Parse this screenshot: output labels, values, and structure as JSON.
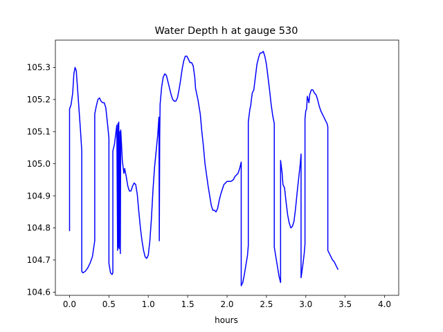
{
  "chart_data": {
    "type": "line",
    "title": "Water Depth h at gauge 530",
    "xlabel": "hours",
    "ylabel": "",
    "xlim": [
      -0.18,
      4.18
    ],
    "ylim": [
      104.59,
      105.385
    ],
    "x_ticks": [
      0.0,
      0.5,
      1.0,
      1.5,
      2.0,
      2.5,
      3.0,
      3.5,
      4.0
    ],
    "x_tick_labels": [
      "0.0",
      "0.5",
      "1.0",
      "1.5",
      "2.0",
      "2.5",
      "3.0",
      "3.5",
      "4.0"
    ],
    "y_ticks": [
      104.6,
      104.7,
      104.8,
      104.9,
      105.0,
      105.1,
      105.2,
      105.3
    ],
    "y_tick_labels": [
      "104.6",
      "104.7",
      "104.8",
      "104.9",
      "105.0",
      "105.1",
      "105.2",
      "105.3"
    ],
    "grid": false,
    "series": [
      {
        "color": "#0000ff",
        "points": [
          [
            0.0,
            104.79
          ],
          [
            0.0,
            105.17
          ],
          [
            0.02,
            105.185
          ],
          [
            0.04,
            105.22
          ],
          [
            0.055,
            105.28
          ],
          [
            0.07,
            105.3
          ],
          [
            0.085,
            105.29
          ],
          [
            0.1,
            105.24
          ],
          [
            0.12,
            105.17
          ],
          [
            0.14,
            105.1
          ],
          [
            0.155,
            105.04
          ],
          [
            0.155,
            104.665
          ],
          [
            0.17,
            104.66
          ],
          [
            0.2,
            104.665
          ],
          [
            0.23,
            104.675
          ],
          [
            0.26,
            104.69
          ],
          [
            0.29,
            104.71
          ],
          [
            0.32,
            104.76
          ],
          [
            0.32,
            105.155
          ],
          [
            0.34,
            105.18
          ],
          [
            0.36,
            105.2
          ],
          [
            0.38,
            105.205
          ],
          [
            0.4,
            105.195
          ],
          [
            0.42,
            105.19
          ],
          [
            0.44,
            105.19
          ],
          [
            0.46,
            105.175
          ],
          [
            0.48,
            105.13
          ],
          [
            0.5,
            105.08
          ],
          [
            0.5,
            104.69
          ],
          [
            0.52,
            104.66
          ],
          [
            0.54,
            104.655
          ],
          [
            0.55,
            104.66
          ],
          [
            0.55,
            105.04
          ],
          [
            0.57,
            105.06
          ],
          [
            0.59,
            105.1
          ],
          [
            0.6,
            105.12
          ],
          [
            0.61,
            104.73
          ],
          [
            0.615,
            105.125
          ],
          [
            0.62,
            104.74
          ],
          [
            0.625,
            105.13
          ],
          [
            0.63,
            104.735
          ],
          [
            0.64,
            105.1
          ],
          [
            0.645,
            104.72
          ],
          [
            0.65,
            105.105
          ],
          [
            0.66,
            105.06
          ],
          [
            0.67,
            105.01
          ],
          [
            0.68,
            104.99
          ],
          [
            0.69,
            104.97
          ],
          [
            0.7,
            104.985
          ],
          [
            0.72,
            104.96
          ],
          [
            0.74,
            104.93
          ],
          [
            0.76,
            104.915
          ],
          [
            0.78,
            104.915
          ],
          [
            0.8,
            104.93
          ],
          [
            0.82,
            104.94
          ],
          [
            0.84,
            104.935
          ],
          [
            0.86,
            104.905
          ],
          [
            0.88,
            104.85
          ],
          [
            0.9,
            104.8
          ],
          [
            0.92,
            104.76
          ],
          [
            0.94,
            104.73
          ],
          [
            0.96,
            104.71
          ],
          [
            0.98,
            104.705
          ],
          [
            1.0,
            104.715
          ],
          [
            1.02,
            104.76
          ],
          [
            1.04,
            104.83
          ],
          [
            1.06,
            104.92
          ],
          [
            1.08,
            104.99
          ],
          [
            1.1,
            105.04
          ],
          [
            1.12,
            105.09
          ],
          [
            1.135,
            105.145
          ],
          [
            1.14,
            104.76
          ],
          [
            1.145,
            105.08
          ],
          [
            1.15,
            105.185
          ],
          [
            1.17,
            105.24
          ],
          [
            1.19,
            105.27
          ],
          [
            1.21,
            105.28
          ],
          [
            1.23,
            105.275
          ],
          [
            1.25,
            105.255
          ],
          [
            1.27,
            105.235
          ],
          [
            1.29,
            105.215
          ],
          [
            1.31,
            105.2
          ],
          [
            1.33,
            105.195
          ],
          [
            1.35,
            105.195
          ],
          [
            1.37,
            105.205
          ],
          [
            1.39,
            105.23
          ],
          [
            1.41,
            105.26
          ],
          [
            1.43,
            105.295
          ],
          [
            1.45,
            105.32
          ],
          [
            1.47,
            105.335
          ],
          [
            1.49,
            105.335
          ],
          [
            1.51,
            105.325
          ],
          [
            1.53,
            105.315
          ],
          [
            1.55,
            105.315
          ],
          [
            1.57,
            105.305
          ],
          [
            1.59,
            105.27
          ],
          [
            1.6,
            105.235
          ],
          [
            1.63,
            105.2
          ],
          [
            1.66,
            105.155
          ],
          [
            1.68,
            105.1
          ],
          [
            1.7,
            105.055
          ],
          [
            1.72,
            105.0
          ],
          [
            1.74,
            104.965
          ],
          [
            1.76,
            104.93
          ],
          [
            1.78,
            104.9
          ],
          [
            1.8,
            104.87
          ],
          [
            1.82,
            104.855
          ],
          [
            1.84,
            104.855
          ],
          [
            1.86,
            104.85
          ],
          [
            1.88,
            104.86
          ],
          [
            1.9,
            104.885
          ],
          [
            1.92,
            104.905
          ],
          [
            1.94,
            104.92
          ],
          [
            1.96,
            104.935
          ],
          [
            1.98,
            104.94
          ],
          [
            2.0,
            104.945
          ],
          [
            2.02,
            104.945
          ],
          [
            2.05,
            104.945
          ],
          [
            2.08,
            104.95
          ],
          [
            2.1,
            104.96
          ],
          [
            2.12,
            104.965
          ],
          [
            2.14,
            104.97
          ],
          [
            2.16,
            104.985
          ],
          [
            2.18,
            105.005
          ],
          [
            2.18,
            104.62
          ],
          [
            2.2,
            104.63
          ],
          [
            2.22,
            104.655
          ],
          [
            2.24,
            104.685
          ],
          [
            2.26,
            104.715
          ],
          [
            2.27,
            104.745
          ],
          [
            2.27,
            105.13
          ],
          [
            2.29,
            105.17
          ],
          [
            2.3,
            105.18
          ],
          [
            2.32,
            105.22
          ],
          [
            2.34,
            105.23
          ],
          [
            2.36,
            105.27
          ],
          [
            2.38,
            105.31
          ],
          [
            2.4,
            105.33
          ],
          [
            2.42,
            105.345
          ],
          [
            2.44,
            105.345
          ],
          [
            2.46,
            105.35
          ],
          [
            2.48,
            105.335
          ],
          [
            2.5,
            105.31
          ],
          [
            2.52,
            105.27
          ],
          [
            2.54,
            105.23
          ],
          [
            2.56,
            105.185
          ],
          [
            2.58,
            105.15
          ],
          [
            2.6,
            105.125
          ],
          [
            2.6,
            104.74
          ],
          [
            2.62,
            104.71
          ],
          [
            2.64,
            104.68
          ],
          [
            2.66,
            104.65
          ],
          [
            2.68,
            104.63
          ],
          [
            2.68,
            105.01
          ],
          [
            2.69,
            104.99
          ],
          [
            2.7,
            104.97
          ],
          [
            2.71,
            104.935
          ],
          [
            2.73,
            104.925
          ],
          [
            2.75,
            104.88
          ],
          [
            2.77,
            104.84
          ],
          [
            2.79,
            104.815
          ],
          [
            2.81,
            104.8
          ],
          [
            2.83,
            104.805
          ],
          [
            2.85,
            104.82
          ],
          [
            2.87,
            104.86
          ],
          [
            2.89,
            104.91
          ],
          [
            2.91,
            104.955
          ],
          [
            2.93,
            105.0
          ],
          [
            2.94,
            105.03
          ],
          [
            2.94,
            104.645
          ],
          [
            2.96,
            104.68
          ],
          [
            2.98,
            104.72
          ],
          [
            2.99,
            104.75
          ],
          [
            2.99,
            105.14
          ],
          [
            3.0,
            105.165
          ],
          [
            3.01,
            105.17
          ],
          [
            3.02,
            105.21
          ],
          [
            3.03,
            105.2
          ],
          [
            3.04,
            105.19
          ],
          [
            3.05,
            105.215
          ],
          [
            3.07,
            105.23
          ],
          [
            3.09,
            105.23
          ],
          [
            3.11,
            105.22
          ],
          [
            3.13,
            105.215
          ],
          [
            3.15,
            105.2
          ],
          [
            3.17,
            105.18
          ],
          [
            3.19,
            105.165
          ],
          [
            3.21,
            105.155
          ],
          [
            3.23,
            105.145
          ],
          [
            3.25,
            105.135
          ],
          [
            3.27,
            105.125
          ],
          [
            3.28,
            105.115
          ],
          [
            3.28,
            104.73
          ],
          [
            3.3,
            104.72
          ],
          [
            3.32,
            104.71
          ],
          [
            3.34,
            104.7
          ],
          [
            3.36,
            104.695
          ],
          [
            3.38,
            104.685
          ],
          [
            3.4,
            104.675
          ],
          [
            3.41,
            104.67
          ]
        ]
      }
    ]
  }
}
